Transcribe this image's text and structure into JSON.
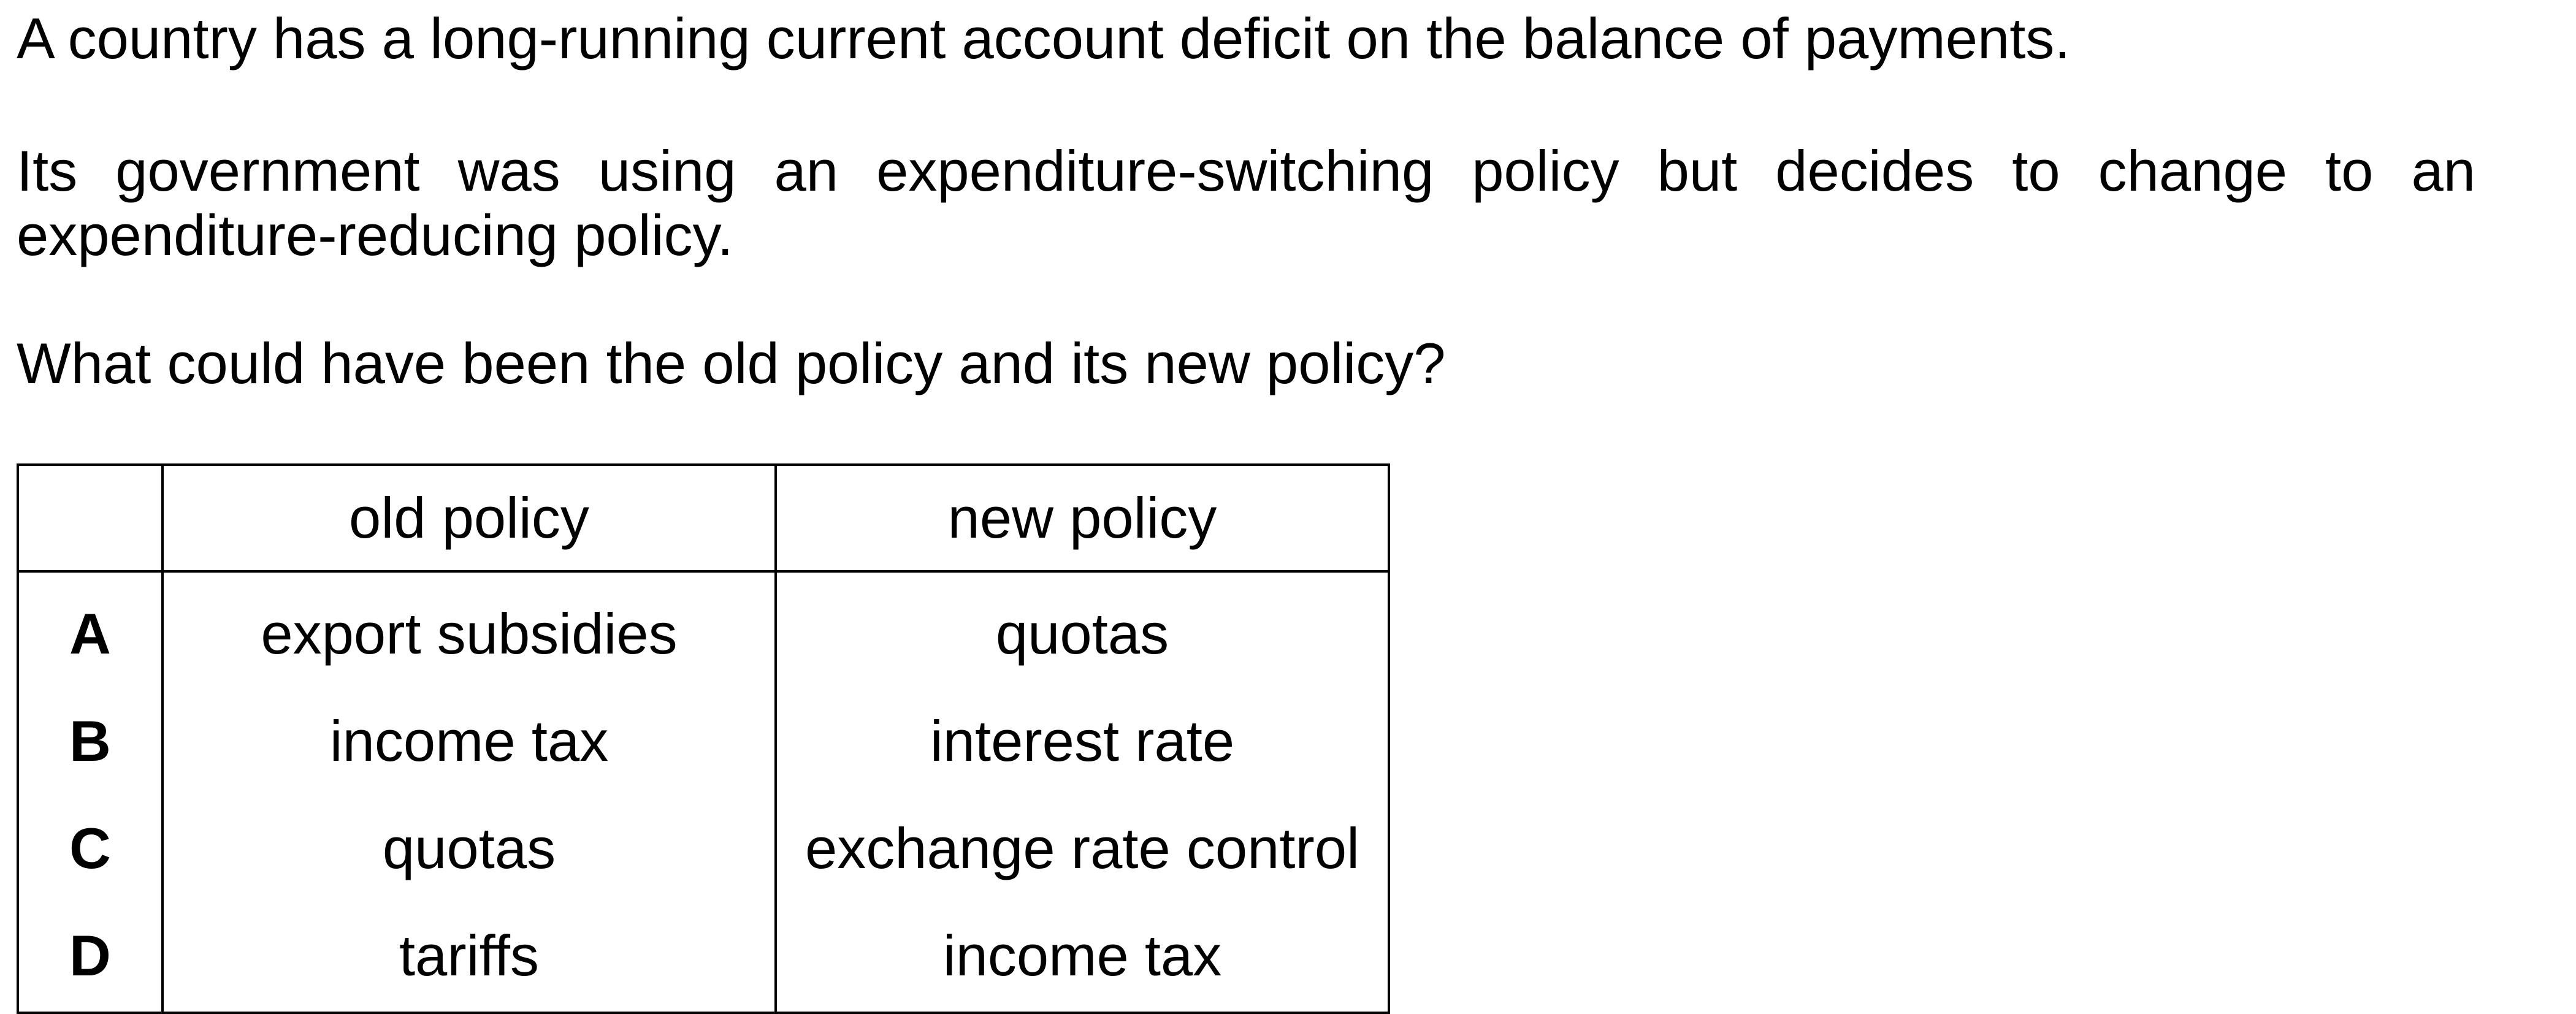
{
  "question": {
    "stem_line1": "A country has a long-running current account deficit on the balance of payments.",
    "stem_line2": "Its government was using an expenditure-switching policy but decides to change to an expenditure-reducing policy.",
    "prompt": "What could have been the old policy and its new policy?"
  },
  "table": {
    "headers": [
      "",
      "old policy",
      "new policy"
    ],
    "rows": [
      {
        "option": "A",
        "old": "export subsidies",
        "new": "quotas"
      },
      {
        "option": "B",
        "old": "income tax",
        "new": "interest rate"
      },
      {
        "option": "C",
        "old": "quotas",
        "new": "exchange rate control"
      },
      {
        "option": "D",
        "old": "tariffs",
        "new": "income tax"
      }
    ]
  }
}
